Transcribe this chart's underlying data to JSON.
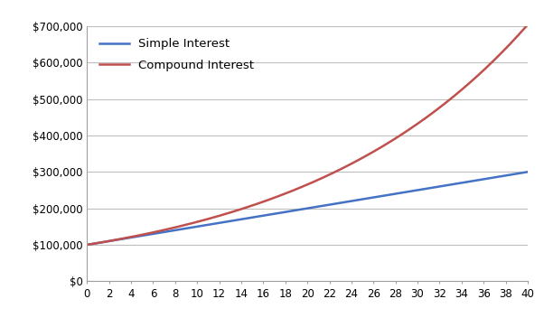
{
  "principal": 100000,
  "simple_rate": 0.05,
  "compound_rate": 0.05,
  "years": 40,
  "simple_color": "#4472C4",
  "compound_color": "#C0504D",
  "simple_label": "Simple Interest",
  "compound_label": "Compound Interest",
  "xlim": [
    0,
    40
  ],
  "ylim": [
    0,
    700000
  ],
  "yticks": [
    0,
    100000,
    200000,
    300000,
    400000,
    500000,
    600000,
    700000
  ],
  "xticks": [
    0,
    2,
    4,
    6,
    8,
    10,
    12,
    14,
    16,
    18,
    20,
    22,
    24,
    26,
    28,
    30,
    32,
    34,
    36,
    38,
    40
  ],
  "line_width": 1.8,
  "legend_loc": "upper left",
  "legend_fontsize": 9.5,
  "tick_fontsize": 8.5,
  "grid_color": "#BEBEBE",
  "background_color": "#FFFFFF",
  "figure_background": "#FFFFFF",
  "spine_color": "#A0A0A0"
}
